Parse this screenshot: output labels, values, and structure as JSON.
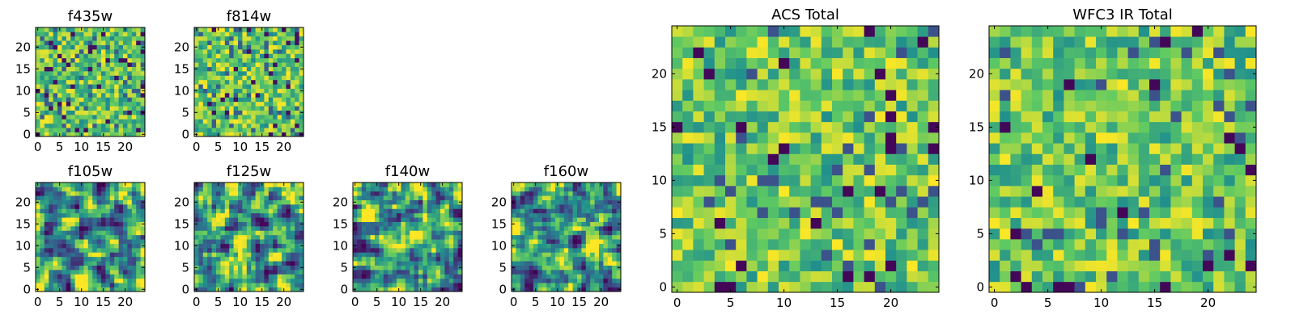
{
  "figure": {
    "colormap": "viridis",
    "colormap_stops": [
      "#440154",
      "#3b528b",
      "#21908d",
      "#5dc963",
      "#fde725"
    ]
  },
  "chart_data": [
    {
      "type": "heatmap",
      "title": "f435w",
      "grid": false,
      "size": 25,
      "vmin": 0,
      "vmax": 1,
      "noise_pattern": "fine",
      "seed": 11,
      "xlim": [
        -0.5,
        24.5
      ],
      "ylim": [
        -0.5,
        24.5
      ],
      "xticks": [
        0,
        5,
        10,
        15,
        20
      ],
      "yticks": [
        0,
        5,
        10,
        15,
        20
      ],
      "xtick_labels": [
        "0",
        "5",
        "10",
        "15",
        "20"
      ],
      "ytick_labels": [
        "0",
        "5",
        "10",
        "15",
        "20"
      ]
    },
    {
      "type": "heatmap",
      "title": "f814w",
      "grid": false,
      "size": 25,
      "vmin": 0,
      "vmax": 1,
      "noise_pattern": "fine",
      "seed": 23,
      "xlim": [
        -0.5,
        24.5
      ],
      "ylim": [
        -0.5,
        24.5
      ],
      "xticks": [
        0,
        5,
        10,
        15,
        20
      ],
      "yticks": [
        0,
        5,
        10,
        15,
        20
      ],
      "xtick_labels": [
        "0",
        "5",
        "10",
        "15",
        "20"
      ],
      "ytick_labels": [
        "0",
        "5",
        "10",
        "15",
        "20"
      ]
    },
    {
      "type": "heatmap",
      "title": "f105w",
      "grid": false,
      "size": 25,
      "vmin": 0,
      "vmax": 1,
      "noise_pattern": "smooth",
      "seed": 37,
      "xlim": [
        -0.5,
        24.5
      ],
      "ylim": [
        -0.5,
        24.5
      ],
      "xticks": [
        0,
        5,
        10,
        15,
        20
      ],
      "yticks": [
        0,
        5,
        10,
        15,
        20
      ],
      "xtick_labels": [
        "0",
        "5",
        "10",
        "15",
        "20"
      ],
      "ytick_labels": [
        "0",
        "5",
        "10",
        "15",
        "20"
      ]
    },
    {
      "type": "heatmap",
      "title": "f125w",
      "grid": false,
      "size": 25,
      "vmin": 0,
      "vmax": 1,
      "noise_pattern": "smooth",
      "seed": 41,
      "xlim": [
        -0.5,
        24.5
      ],
      "ylim": [
        -0.5,
        24.5
      ],
      "xticks": [
        0,
        5,
        10,
        15,
        20
      ],
      "yticks": [
        0,
        5,
        10,
        15,
        20
      ],
      "xtick_labels": [
        "0",
        "5",
        "10",
        "15",
        "20"
      ],
      "ytick_labels": [
        "0",
        "5",
        "10",
        "15",
        "20"
      ]
    },
    {
      "type": "heatmap",
      "title": "f140w",
      "grid": false,
      "size": 25,
      "vmin": 0,
      "vmax": 1,
      "noise_pattern": "smooth",
      "seed": 53,
      "xlim": [
        -0.5,
        24.5
      ],
      "ylim": [
        -0.5,
        24.5
      ],
      "xticks": [
        0,
        5,
        10,
        15,
        20
      ],
      "yticks": [
        0,
        5,
        10,
        15,
        20
      ],
      "xtick_labels": [
        "0",
        "5",
        "10",
        "15",
        "20"
      ],
      "ytick_labels": [
        "0",
        "5",
        "10",
        "15",
        "20"
      ]
    },
    {
      "type": "heatmap",
      "title": "f160w",
      "grid": false,
      "size": 25,
      "vmin": 0,
      "vmax": 1,
      "noise_pattern": "smooth",
      "seed": 67,
      "xlim": [
        -0.5,
        24.5
      ],
      "ylim": [
        -0.5,
        24.5
      ],
      "xticks": [
        0,
        5,
        10,
        15,
        20
      ],
      "yticks": [
        0,
        5,
        10,
        15,
        20
      ],
      "xtick_labels": [
        "0",
        "5",
        "10",
        "15",
        "20"
      ],
      "ytick_labels": [
        "0",
        "5",
        "10",
        "15",
        "20"
      ]
    },
    {
      "type": "heatmap",
      "title": "ACS Total",
      "grid": false,
      "size": 25,
      "vmin": 0,
      "vmax": 1,
      "noise_pattern": "blocky",
      "seed": 79,
      "xlim": [
        -0.5,
        24.5
      ],
      "ylim": [
        -0.5,
        24.5
      ],
      "xticks": [
        0,
        5,
        10,
        15,
        20
      ],
      "yticks": [
        0,
        5,
        10,
        15,
        20
      ],
      "xtick_labels": [
        "0",
        "5",
        "10",
        "15",
        "20"
      ],
      "ytick_labels": [
        "0",
        "5",
        "10",
        "15",
        "20"
      ]
    },
    {
      "type": "heatmap",
      "title": "WFC3 IR Total",
      "grid": false,
      "size": 25,
      "vmin": 0,
      "vmax": 1,
      "noise_pattern": "blocky",
      "seed": 97,
      "xlim": [
        -0.5,
        24.5
      ],
      "ylim": [
        -0.5,
        24.5
      ],
      "xticks": [
        0,
        5,
        10,
        15,
        20
      ],
      "yticks": [
        0,
        5,
        10,
        15,
        20
      ],
      "xtick_labels": [
        "0",
        "5",
        "10",
        "15",
        "20"
      ],
      "ytick_labels": [
        "0",
        "5",
        "10",
        "15",
        "20"
      ]
    }
  ]
}
